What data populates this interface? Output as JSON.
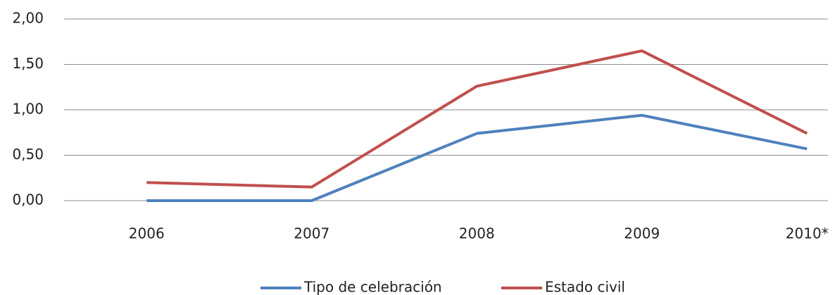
{
  "chart_data": {
    "type": "line",
    "categories": [
      "2006",
      "2007",
      "2008",
      "2009",
      "2010*"
    ],
    "series": [
      {
        "name": "Tipo de celebración",
        "color": "#4f81bd",
        "values": [
          0,
          0,
          0.74,
          0.94,
          0.57
        ]
      },
      {
        "name": "Estado civil",
        "color": "#c0504d",
        "values": [
          0.2,
          0.15,
          1.26,
          1.65,
          0.74
        ]
      }
    ],
    "ylim": [
      0,
      2
    ],
    "yticks": [
      {
        "value": 0,
        "label": "0,00"
      },
      {
        "value": 0.5,
        "label": "0,50"
      },
      {
        "value": 1,
        "label": "1,00"
      },
      {
        "value": 1.5,
        "label": "1,50"
      },
      {
        "value": 2,
        "label": "2,00"
      }
    ],
    "grid": true,
    "legend": "bottom"
  }
}
